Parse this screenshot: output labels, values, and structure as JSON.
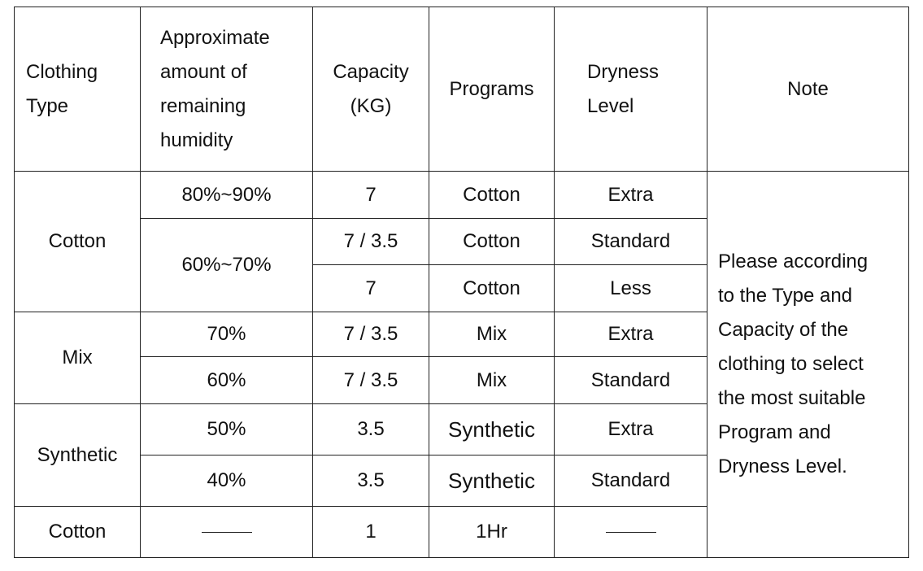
{
  "headers": {
    "clothing_type": [
      "Clothing",
      "Type"
    ],
    "humidity": [
      "Approximate",
      "amount of",
      "remaining",
      "humidity"
    ],
    "capacity": [
      "Capacity",
      "(KG)"
    ],
    "programs": "Programs",
    "dryness": [
      "Dryness",
      "Level"
    ],
    "note": "Note"
  },
  "rows": {
    "cotton": {
      "type": "Cotton",
      "r1": {
        "humidity": "80%~90%",
        "capacity": "7",
        "program": "Cotton",
        "dryness": "Extra"
      },
      "humidity_group": "60%~70%",
      "r2": {
        "capacity": "7 / 3.5",
        "program": "Cotton",
        "dryness": "Standard"
      },
      "r3": {
        "capacity": "7",
        "program": "Cotton",
        "dryness": "Less"
      }
    },
    "mix": {
      "type": "Mix",
      "r1": {
        "humidity": "70%",
        "capacity": "7 / 3.5",
        "program": "Mix",
        "dryness": "Extra"
      },
      "r2": {
        "humidity": "60%",
        "capacity": "7 / 3.5",
        "program": "Mix",
        "dryness": "Standard"
      }
    },
    "synthetic": {
      "type": "Synthetic",
      "r1": {
        "humidity": "50%",
        "capacity": "3.5",
        "program": "Synthetic",
        "dryness": "Extra"
      },
      "r2": {
        "humidity": "40%",
        "capacity": "3.5",
        "program": "Synthetic",
        "dryness": "Standard"
      }
    },
    "cotton_timed": {
      "type": "Cotton",
      "capacity": "1",
      "program": "1Hr"
    }
  },
  "note_lines": [
    "Please according",
    "to the Type and",
    "Capacity of the",
    "clothing to select",
    "the most suitable",
    "Program and",
    "Dryness Level."
  ]
}
